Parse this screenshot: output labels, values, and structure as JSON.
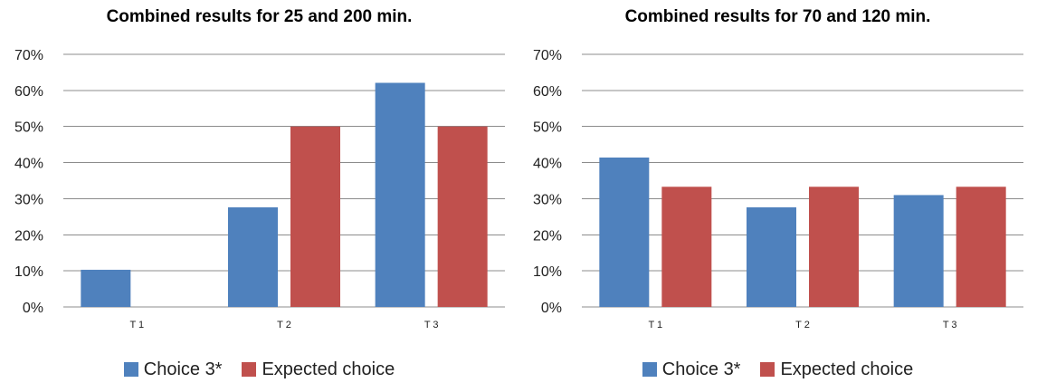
{
  "chart_data": [
    {
      "type": "bar",
      "title": "Combined results for 25 and 200 min.",
      "categories": [
        "T 1",
        "T 2",
        "T 3"
      ],
      "series": [
        {
          "name": "Choice 3*",
          "color": "#4F81BD",
          "values": [
            10.3,
            27.6,
            62.1
          ]
        },
        {
          "name": "Expected choice",
          "color": "#C0504D",
          "values": [
            0,
            50,
            50
          ]
        }
      ],
      "yticks": [
        "0%",
        "10%",
        "20%",
        "30%",
        "40%",
        "50%",
        "60%",
        "70%"
      ],
      "ylim": [
        0,
        70
      ],
      "grid": true,
      "legend": "bottom"
    },
    {
      "type": "bar",
      "title": "Combined results for 70 and 120 min.",
      "categories": [
        "T 1",
        "T 2",
        "T 3"
      ],
      "series": [
        {
          "name": "Choice 3*",
          "color": "#4F81BD",
          "values": [
            41.4,
            27.6,
            31.0
          ]
        },
        {
          "name": "Expected choice",
          "color": "#C0504D",
          "values": [
            33.3,
            33.3,
            33.3
          ]
        }
      ],
      "yticks": [
        "0%",
        "10%",
        "20%",
        "30%",
        "40%",
        "50%",
        "60%",
        "70%"
      ],
      "ylim": [
        0,
        70
      ],
      "grid": true,
      "legend": "bottom"
    }
  ]
}
